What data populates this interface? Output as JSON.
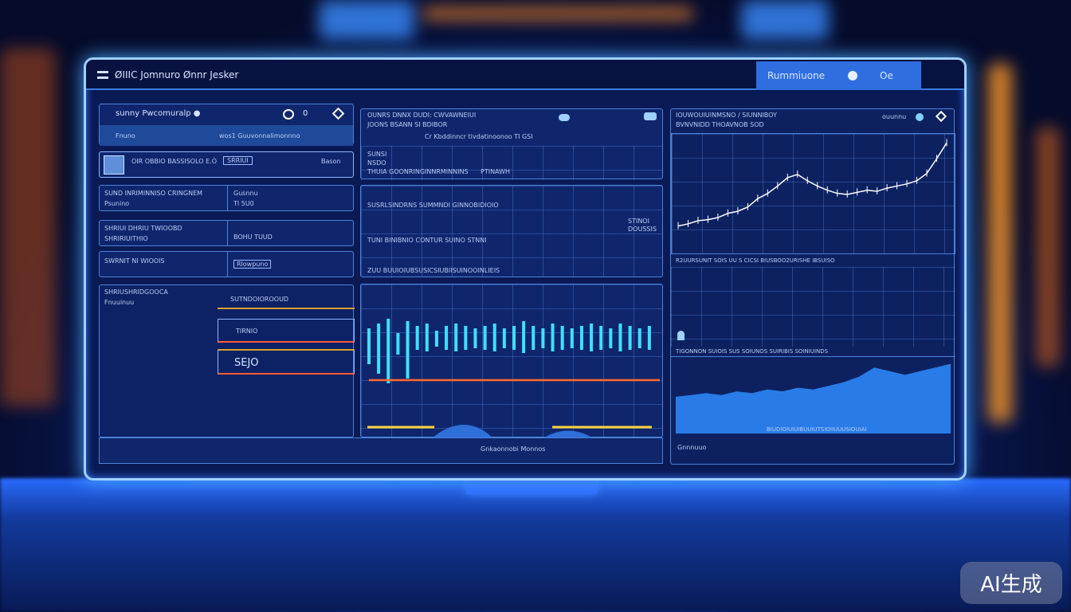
{
  "header": {
    "title": "ØIIIC Jomnuro Ønnr Jesker",
    "action_label": "Rummiuone",
    "action_label2": "Oe"
  },
  "left": {
    "panel1": {
      "title": "sunny Pwcomuralp ●",
      "count": "0",
      "sub_left": "Fnuno",
      "sub_right": "wos1 Guuvonnalimonnno"
    },
    "panel2": {
      "title": "OIR OBBIO BASSISOLO E.Ò",
      "tag": "SRRIUI",
      "right": "Bason"
    },
    "rows": [
      {
        "left": "SUND INRIMINNISO CRINGNEM",
        "left2": "Psunino",
        "right": "Gusnnu",
        "right2": "Tl 5U0"
      },
      {
        "left": "SHRIUI DHRIU TWIOOBD",
        "left2": "SHRIRIUITHIO",
        "right": "BOHU TUUD"
      },
      {
        "left": "SWRNIT NI WIOOIS",
        "right": "Rlowpuno"
      }
    ],
    "panel3": {
      "title": "SHRIUSHRIDGOOCA",
      "sub": "Fnuuinuu",
      "items": [
        "SUTNDOIOROOUD",
        "TIRNIO",
        "SEJO"
      ]
    }
  },
  "middle": {
    "top": {
      "line1": "OUNRS DNNX DUDI: CWVAWNEIUI",
      "line2": "JOONS BSANN SI BDIBOR",
      "note": "Cr Kbddinncr tivdatinoonoo  TI GSI",
      "rows": [
        "SUNSI",
        "NSDO",
        "THUIA  GOONRINGINNRMINNINS",
        "PTINAWH"
      ]
    },
    "second": {
      "line1": "SUSRLSINDRNS SUMMNDI GINNOBIDIOIO",
      "line2": "TUNI  BINIBNIO CONTUR  SUINO  STNNI",
      "tags": [
        "STINOI",
        "DOUSSIS"
      ],
      "footer": "ZUU  BUUIOIUBSUSICSIUBIISUINOOINLIEIS"
    },
    "footer": "Gnkaonnobi Monnos"
  },
  "right": {
    "title1": "IOUWOUIUINMSNO / SIUNNIBOY",
    "title2": "BVNVNIDD  THOAVNOB  SOD",
    "control": "ouunnu",
    "axis": "R2UURSUNIT SOIS UU S CICSI BIUSBOO2URISHE IBSUISO",
    "band": "TIGONNON  SUIOIS  SUS  SOIUNOS  SUIRIBIS  SOINIUINDS",
    "bottom": "BIUDIOIUIUIBUUIUTSIOIIUUUSIOUIAI",
    "footer": "Gnnnuuo"
  },
  "watermark": "AI生成",
  "colors": {
    "accent": "#2f7cff",
    "wave": "#3fe0ff",
    "line_orange": "#ff6a2a",
    "line_yellow": "#ffd23a",
    "area": "#2f8cff"
  },
  "chart_data": [
    {
      "type": "line",
      "values": [
        2,
        2.2,
        2.5,
        2.6,
        2.8,
        3.2,
        3.4,
        3.8,
        4.6,
        5.1,
        5.8,
        6.6,
        6.9,
        6.3,
        5.8,
        5.4,
        5.1,
        5,
        5.2,
        5.4,
        5.3,
        5.6,
        5.8,
        6,
        6.3,
        7,
        8.4,
        9.9
      ]
    },
    {
      "type": "bar",
      "values": [
        5,
        7,
        9,
        3,
        8,
        6,
        7,
        4,
        6,
        7,
        6,
        5,
        6,
        7,
        5,
        6,
        8,
        6,
        5,
        7,
        6,
        5,
        6,
        7,
        6,
        5,
        7,
        6,
        5,
        6
      ]
    },
    {
      "type": "area",
      "values": [
        2,
        2.1,
        2.2,
        2.1,
        2.3,
        2.2,
        2.4,
        2.3,
        2.5,
        2.4,
        2.6,
        2.8,
        3.1,
        3.6,
        3.4,
        3.2,
        3.4,
        3.6,
        3.8
      ]
    }
  ]
}
